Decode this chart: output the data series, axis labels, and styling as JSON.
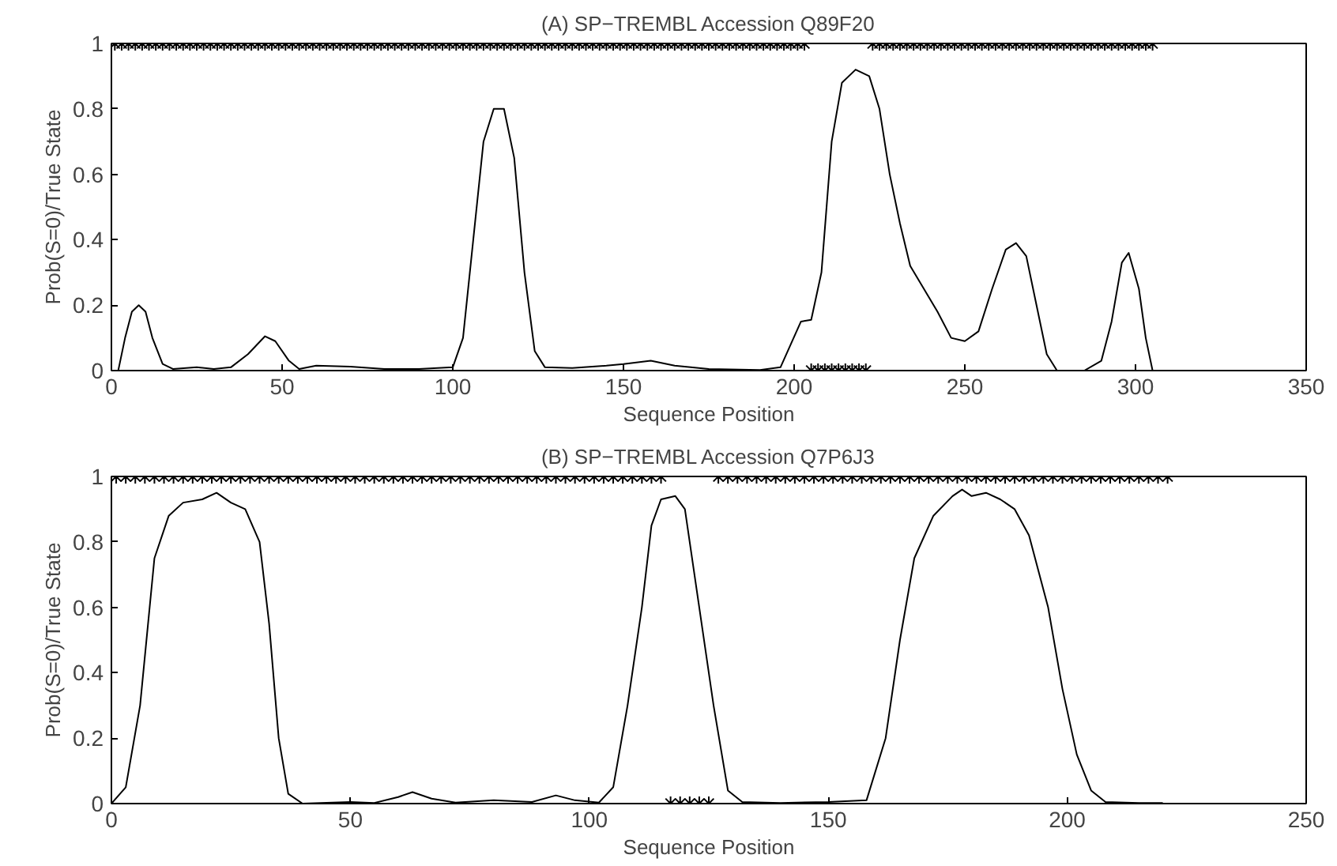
{
  "chart_data": [
    {
      "type": "line",
      "title": "(A) SP−TREMBL Accession Q89F20",
      "xlabel": "Sequence Position",
      "ylabel": "Prob(S=0)/True State",
      "xlim": [
        0,
        350
      ],
      "xticks": [
        0,
        50,
        100,
        150,
        200,
        250,
        300,
        350
      ],
      "ylim": [
        0,
        1
      ],
      "yticks": [
        0,
        0.2,
        0.4,
        0.6,
        0.8,
        1
      ],
      "grid": false,
      "series": [
        {
          "color": "#000000",
          "line_style": "solid",
          "x": [
            2,
            4,
            6,
            8,
            10,
            12,
            15,
            18,
            25,
            30,
            35,
            40,
            45,
            48,
            52,
            55,
            60,
            70,
            80,
            90,
            100,
            103,
            106,
            109,
            112,
            115,
            118,
            121,
            124,
            127,
            135,
            145,
            150,
            158,
            165,
            175,
            190,
            196,
            199,
            202,
            205,
            208,
            211,
            214,
            218,
            222,
            225,
            228,
            231,
            234,
            238,
            242,
            246,
            250,
            254,
            258,
            262,
            265,
            268,
            271,
            274,
            277,
            285,
            290,
            293,
            296,
            298,
            301,
            303,
            305
          ],
          "values": [
            0,
            0.1,
            0.18,
            0.2,
            0.18,
            0.1,
            0.02,
            0.005,
            0.01,
            0.005,
            0.01,
            0.05,
            0.105,
            0.09,
            0.03,
            0.005,
            0.015,
            0.012,
            0.005,
            0.005,
            0.01,
            0.1,
            0.4,
            0.7,
            0.8,
            0.8,
            0.65,
            0.3,
            0.06,
            0.01,
            0.008,
            0.015,
            0.02,
            0.03,
            0.015,
            0.005,
            0.002,
            0.01,
            0.08,
            0.15,
            0.155,
            0.3,
            0.7,
            0.88,
            0.92,
            0.9,
            0.8,
            0.6,
            0.45,
            0.32,
            0.25,
            0.18,
            0.1,
            0.09,
            0.12,
            0.25,
            0.37,
            0.39,
            0.35,
            0.2,
            0.05,
            0,
            0,
            0.03,
            0.15,
            0.33,
            0.36,
            0.25,
            0.1,
            0
          ]
        },
        {
          "type": "scatter",
          "color": "#000000",
          "marker": "cross",
          "x": [
            1,
            3,
            5,
            7,
            9,
            11,
            13,
            15,
            17,
            19,
            21,
            23,
            25,
            27,
            29,
            31,
            33,
            35,
            37,
            39,
            41,
            43,
            45,
            47,
            49,
            51,
            53,
            55,
            57,
            59,
            61,
            63,
            65,
            67,
            69,
            71,
            73,
            75,
            77,
            79,
            81,
            83,
            85,
            87,
            89,
            91,
            93,
            95,
            97,
            99,
            101,
            103,
            105,
            107,
            109,
            111,
            113,
            115,
            117,
            119,
            121,
            123,
            125,
            127,
            129,
            131,
            133,
            135,
            137,
            139,
            141,
            143,
            145,
            147,
            149,
            151,
            153,
            155,
            157,
            159,
            161,
            163,
            165,
            167,
            169,
            171,
            173,
            175,
            177,
            179,
            181,
            183,
            185,
            187,
            189,
            191,
            193,
            195,
            197,
            199,
            201,
            203,
            205,
            207,
            209,
            211,
            213,
            215,
            217,
            219,
            221,
            223,
            225,
            227,
            229,
            231,
            233,
            235,
            237,
            239,
            241,
            243,
            245,
            247,
            249,
            251,
            253,
            255,
            257,
            259,
            261,
            263,
            265,
            267,
            269,
            271,
            273,
            275,
            277,
            279,
            281,
            283,
            285,
            287,
            289,
            291,
            293,
            295,
            297,
            299,
            301,
            303,
            305
          ],
          "values": [
            1,
            1,
            1,
            1,
            1,
            1,
            1,
            1,
            1,
            1,
            1,
            1,
            1,
            1,
            1,
            1,
            1,
            1,
            1,
            1,
            1,
            1,
            1,
            1,
            1,
            1,
            1,
            1,
            1,
            1,
            1,
            1,
            1,
            1,
            1,
            1,
            1,
            1,
            1,
            1,
            1,
            1,
            1,
            1,
            1,
            1,
            1,
            1,
            1,
            1,
            1,
            1,
            1,
            1,
            1,
            1,
            1,
            1,
            1,
            1,
            1,
            1,
            1,
            1,
            1,
            1,
            1,
            1,
            1,
            1,
            1,
            1,
            1,
            1,
            1,
            1,
            1,
            1,
            1,
            1,
            1,
            1,
            1,
            1,
            1,
            1,
            1,
            1,
            1,
            1,
            1,
            1,
            1,
            1,
            1,
            1,
            1,
            1,
            1,
            1,
            1,
            1,
            0,
            0,
            0,
            0,
            0,
            0,
            0,
            0,
            0,
            1,
            1,
            1,
            1,
            1,
            1,
            1,
            1,
            1,
            1,
            1,
            1,
            1,
            1,
            1,
            1,
            1,
            1,
            1,
            1,
            1,
            1,
            1,
            1,
            1,
            1,
            1,
            1,
            1,
            1,
            1,
            1,
            1,
            1,
            1,
            1,
            1,
            1,
            1,
            1,
            1,
            1
          ]
        }
      ]
    },
    {
      "type": "line",
      "title": "(B) SP−TREMBL Accession Q7P6J3",
      "xlabel": "Sequence Position",
      "ylabel": "Prob(S=0)/True State",
      "xlim": [
        0,
        250
      ],
      "xticks": [
        0,
        50,
        100,
        150,
        200,
        250
      ],
      "ylim": [
        0,
        1
      ],
      "yticks": [
        0,
        0.2,
        0.4,
        0.6,
        0.8,
        1
      ],
      "grid": false,
      "series": [
        {
          "color": "#000000",
          "line_style": "solid",
          "x": [
            0,
            3,
            6,
            9,
            12,
            15,
            19,
            22,
            25,
            28,
            31,
            33,
            35,
            37,
            40,
            50,
            55,
            60,
            63,
            67,
            72,
            80,
            88,
            93,
            97,
            102,
            105,
            108,
            111,
            113,
            115,
            118,
            120,
            123,
            126,
            129,
            132,
            140,
            150,
            158,
            162,
            165,
            168,
            172,
            176,
            178,
            180,
            183,
            186,
            189,
            192,
            196,
            199,
            202,
            205,
            208,
            215,
            220
          ],
          "values": [
            0,
            0.05,
            0.3,
            0.75,
            0.88,
            0.92,
            0.93,
            0.95,
            0.92,
            0.9,
            0.8,
            0.55,
            0.2,
            0.03,
            0,
            0.005,
            0.002,
            0.02,
            0.035,
            0.015,
            0.003,
            0.01,
            0.005,
            0.025,
            0.01,
            0.003,
            0.05,
            0.3,
            0.6,
            0.85,
            0.93,
            0.94,
            0.9,
            0.6,
            0.3,
            0.04,
            0.005,
            0.002,
            0.005,
            0.01,
            0.2,
            0.5,
            0.75,
            0.88,
            0.94,
            0.96,
            0.94,
            0.95,
            0.93,
            0.9,
            0.82,
            0.6,
            0.35,
            0.15,
            0.04,
            0.005,
            0.002,
            0.002
          ]
        },
        {
          "type": "scatter",
          "color": "#000000",
          "marker": "cross",
          "x": [
            1,
            3,
            5,
            7,
            9,
            11,
            13,
            15,
            17,
            19,
            21,
            23,
            25,
            27,
            29,
            31,
            33,
            35,
            37,
            39,
            41,
            43,
            45,
            47,
            49,
            51,
            53,
            55,
            57,
            59,
            61,
            63,
            65,
            67,
            69,
            71,
            73,
            75,
            77,
            79,
            81,
            83,
            85,
            87,
            89,
            91,
            93,
            95,
            97,
            99,
            101,
            103,
            105,
            107,
            109,
            111,
            113,
            115,
            117,
            119,
            121,
            123,
            125,
            127,
            129,
            131,
            133,
            135,
            137,
            139,
            141,
            143,
            145,
            147,
            149,
            151,
            153,
            155,
            157,
            159,
            161,
            163,
            165,
            167,
            169,
            171,
            173,
            175,
            177,
            179,
            181,
            183,
            185,
            187,
            189,
            191,
            193,
            195,
            197,
            199,
            201,
            203,
            205,
            207,
            209,
            211,
            213,
            215,
            217,
            219,
            221
          ],
          "values": [
            1,
            1,
            1,
            1,
            1,
            1,
            1,
            1,
            1,
            1,
            1,
            1,
            1,
            1,
            1,
            1,
            1,
            1,
            1,
            1,
            1,
            1,
            1,
            1,
            1,
            1,
            1,
            1,
            1,
            1,
            1,
            1,
            1,
            1,
            1,
            1,
            1,
            1,
            1,
            1,
            1,
            1,
            1,
            1,
            1,
            1,
            1,
            1,
            1,
            1,
            1,
            1,
            1,
            1,
            1,
            1,
            1,
            1,
            0,
            0,
            0,
            0,
            0,
            1,
            1,
            1,
            1,
            1,
            1,
            1,
            1,
            1,
            1,
            1,
            1,
            1,
            1,
            1,
            1,
            1,
            1,
            1,
            1,
            1,
            1,
            1,
            1,
            1,
            1,
            1,
            1,
            1,
            1,
            1,
            1,
            1,
            1,
            1,
            1,
            1,
            1,
            1,
            1,
            1,
            1,
            1,
            1,
            1,
            1,
            1,
            1
          ]
        }
      ]
    }
  ]
}
